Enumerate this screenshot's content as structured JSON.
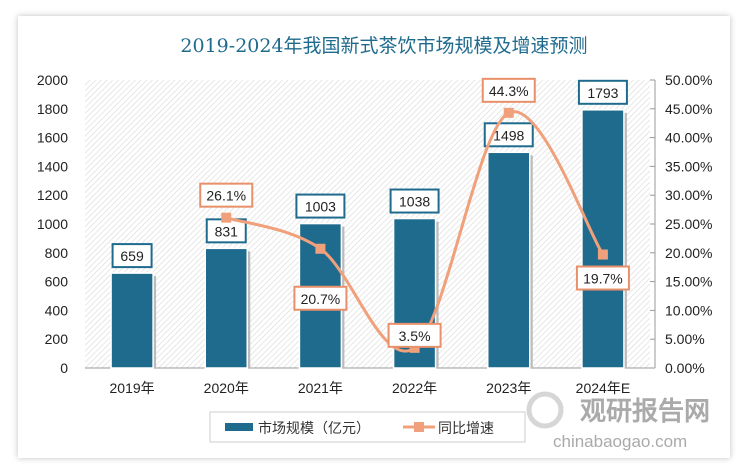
{
  "chart_data": {
    "type": "bar+line",
    "title": "2019-2024年我国新式茶饮市场规模及增速预测",
    "categories": [
      "2019年",
      "2020年",
      "2021年",
      "2022年",
      "2023年",
      "2024年E"
    ],
    "series": [
      {
        "name": "市场规模（亿元）",
        "type": "bar",
        "axis": "left",
        "values": [
          659,
          831,
          1003,
          1038,
          1498,
          1793
        ],
        "labels": [
          "659",
          "831",
          "1003",
          "1038",
          "1498",
          "1793"
        ],
        "color": "#1f6b8e"
      },
      {
        "name": "同比增速",
        "type": "line",
        "axis": "right",
        "values": [
          null,
          26.1,
          20.7,
          3.5,
          44.3,
          19.7
        ],
        "labels": [
          "",
          "26.1%",
          "20.7%",
          "3.5%",
          "44.3%",
          "19.7%"
        ],
        "color": "#f0a07a"
      }
    ],
    "left_axis": {
      "ylim": [
        0,
        2000
      ],
      "ticks": [
        "0",
        "200",
        "400",
        "600",
        "800",
        "1000",
        "1200",
        "1400",
        "1600",
        "1800",
        "2000"
      ]
    },
    "right_axis": {
      "ylim": [
        0,
        50
      ],
      "ticks": [
        "0.00%",
        "5.00%",
        "10.00%",
        "15.00%",
        "20.00%",
        "25.00%",
        "30.00%",
        "35.00%",
        "40.00%",
        "45.00%",
        "50.00%"
      ]
    },
    "legend": "bottom"
  },
  "watermark": {
    "cn": "观研报告网",
    "en": "chinabaogao.com"
  }
}
